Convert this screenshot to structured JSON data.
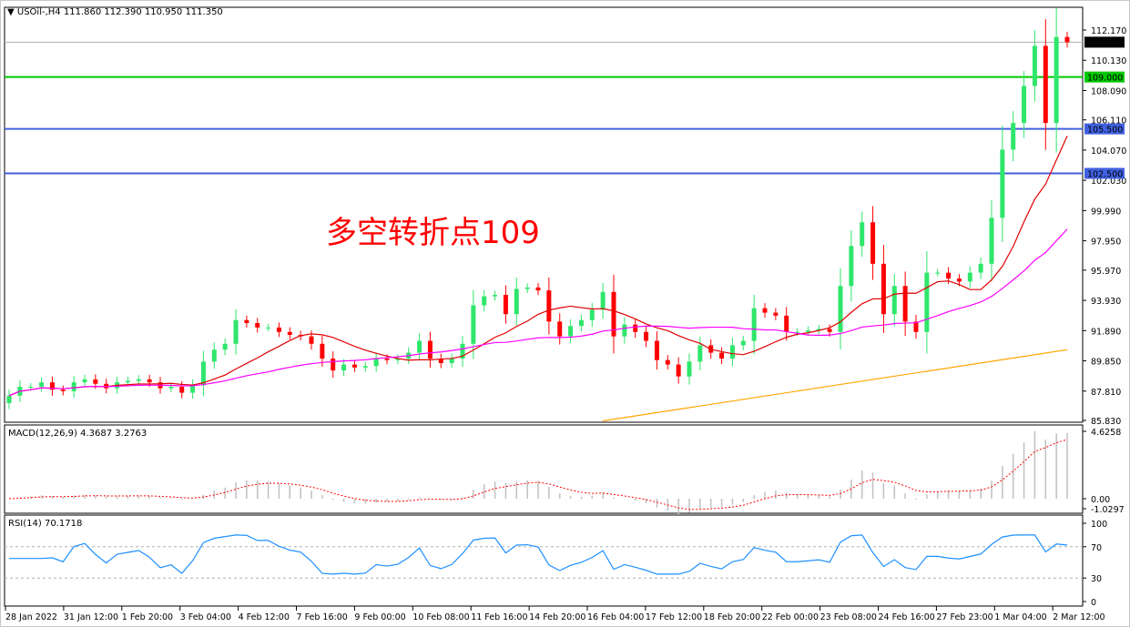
{
  "header": {
    "symbol": "USOil-,H4",
    "ohlc": "111.860 112.390 110.950 111.350"
  },
  "annotation": "多空转折点109",
  "colors": {
    "up": "#2ee66b",
    "down": "#ff0000",
    "ma_fast": "#e00000",
    "ma_mid": "#ff00ff",
    "ma_slow": "#ffa500",
    "green_level": "#00c800",
    "blue_level": "#4060e0",
    "macd_hist": "#c0c0c0",
    "macd_signal": "#ff0000",
    "rsi": "#1e90ff"
  },
  "chart_data": [
    {
      "type": "candlestick",
      "title": "USOil-,H4",
      "y_ticks": [
        112.17,
        110.13,
        108.09,
        106.11,
        104.07,
        102.03,
        99.99,
        97.95,
        95.97,
        93.93,
        91.89,
        89.85,
        87.81,
        85.83
      ],
      "y_tick_labels": [
        "112.170",
        "110.130",
        "108.090",
        "106.110",
        "104.070",
        "102.030",
        "99.990",
        "97.950",
        "95.970",
        "93.930",
        "91.890",
        "89.850",
        "87.810",
        "85.830"
      ],
      "ylim": [
        85.83,
        112.17
      ],
      "x_tick_labels": [
        "28 Jan 2022",
        "31 Jan 12:00",
        "1 Feb 20:00",
        "3 Feb 04:00",
        "4 Feb 12:00",
        "7 Feb 16:00",
        "9 Feb 00:00",
        "10 Feb 08:00",
        "11 Feb 16:00",
        "14 Feb 20:00",
        "16 Feb 04:00",
        "17 Feb 12:00",
        "18 Feb 20:00",
        "22 Feb 00:00",
        "23 Feb 08:00",
        "24 Feb 16:00",
        "27 Feb 23:00",
        "1 Mar 04:00",
        "2 Mar 12:00"
      ],
      "close": [
        87.5,
        88.1,
        88.1,
        88.4,
        87.9,
        87.8,
        88.4,
        88.6,
        88.3,
        88.0,
        88.4,
        88.5,
        88.6,
        88.4,
        88.0,
        88.1,
        87.7,
        88.2,
        89.8,
        90.6,
        91.0,
        92.6,
        92.4,
        92.1,
        92.1,
        91.8,
        91.6,
        91.5,
        91.0,
        90.0,
        89.2,
        89.6,
        89.4,
        89.5,
        90.0,
        89.9,
        90.0,
        90.4,
        91.2,
        90.0,
        89.7,
        90.0,
        91.0,
        93.6,
        94.2,
        94.3,
        93.0,
        94.7,
        94.8,
        94.6,
        92.5,
        91.5,
        92.2,
        92.6,
        93.3,
        94.5,
        91.5,
        92.3,
        91.8,
        91.2,
        89.9,
        89.6,
        88.8,
        89.8,
        90.9,
        90.4,
        90.0,
        90.9,
        91.2,
        93.4,
        93.1,
        92.9,
        91.8,
        91.8,
        91.9,
        92.0,
        91.8,
        94.9,
        97.6,
        99.2,
        96.4,
        93.0,
        94.9,
        92.5,
        91.8,
        95.8,
        95.8,
        95.4,
        95.2,
        95.8,
        96.4,
        99.5,
        104.1,
        105.9,
        108.4,
        111.1,
        105.9,
        111.7,
        111.35
      ],
      "first_open": 87.0,
      "ma_slow": {
        "start_value": 85.8,
        "end_value": 90.6,
        "start_fraction": 0.56
      },
      "levels": [
        {
          "label": "111.350",
          "value": 111.35,
          "color": "#b0b0b0",
          "tag_bg": "#000000"
        },
        {
          "label": "109.000",
          "value": 109.0,
          "color": "#00c800",
          "tag_bg": "#00c800"
        },
        {
          "label": "105.500",
          "value": 105.5,
          "color": "#4060e0",
          "tag_bg": "#4060e0"
        },
        {
          "label": "102.500",
          "value": 102.5,
          "color": "#4060e0",
          "tag_bg": "#4060e0"
        }
      ]
    },
    {
      "type": "bar",
      "title": "MACD(12,26,9) 4.3687 3.2763",
      "y_tick_labels": [
        "4.6258",
        "0.00",
        "-1.0297"
      ],
      "ylim": [
        -1.0297,
        4.6258
      ]
    },
    {
      "type": "line",
      "title": "RSI(14) 70.1718",
      "y_tick_labels": [
        "100",
        "70",
        "30",
        "0"
      ],
      "levels": [
        70,
        30
      ],
      "ylim": [
        0,
        100
      ]
    }
  ]
}
